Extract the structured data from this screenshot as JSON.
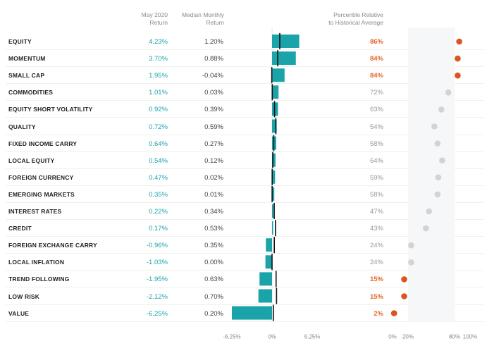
{
  "headers": {
    "return_l1": "May 2020",
    "return_l2": "Return",
    "median_l1": "Median Monthly",
    "median_l2": "Return",
    "pct_l1": "Percentile Relative",
    "pct_l2": "to Historical Average"
  },
  "colors": {
    "bar": "#1aa3a9",
    "median_tick": "#111111",
    "dot_high": "#d9571e",
    "dot_low": "#d3d3d3",
    "text_pct_high": "#e26a2c"
  },
  "chart_data": {
    "type": "bar",
    "title": "",
    "categories": [
      "EQUITY",
      "MOMENTUM",
      "SMALL CAP",
      "COMMODITIES",
      "EQUITY SHORT VOLATILITY",
      "QUALITY",
      "FIXED INCOME CARRY",
      "LOCAL EQUITY",
      "FOREIGN CURRENCY",
      "EMERGING MARKETS",
      "INTEREST RATES",
      "CREDIT",
      "FOREIGN EXCHANGE CARRY",
      "LOCAL INFLATION",
      "TREND FOLLOWING",
      "LOW RISK",
      "VALUE"
    ],
    "series": [
      {
        "name": "May 2020 Return",
        "values": [
          4.23,
          3.7,
          1.95,
          1.01,
          0.92,
          0.72,
          0.64,
          0.54,
          0.47,
          0.35,
          0.22,
          0.17,
          -0.96,
          -1.03,
          -1.95,
          -2.12,
          -6.25
        ]
      },
      {
        "name": "Median Monthly Return",
        "values": [
          1.2,
          0.88,
          -0.04,
          0.03,
          0.39,
          0.59,
          0.27,
          0.12,
          0.02,
          0.01,
          0.34,
          0.53,
          0.35,
          0.0,
          0.63,
          0.7,
          0.2
        ]
      },
      {
        "name": "Percentile Relative to Historical Average",
        "values": [
          86,
          84,
          84,
          72,
          63,
          54,
          58,
          64,
          59,
          58,
          47,
          43,
          24,
          24,
          15,
          15,
          2
        ]
      }
    ],
    "display": {
      "returns": [
        "4.23%",
        "3.70%",
        "1.95%",
        "1.01%",
        "0.92%",
        "0.72%",
        "0.64%",
        "0.54%",
        "0.47%",
        "0.35%",
        "0.22%",
        "0.17%",
        "-0.96%",
        "-1.03%",
        "-1.95%",
        "-2.12%",
        "-6.25%"
      ],
      "medians": [
        "1.20%",
        "0.88%",
        "-0.04%",
        "0.03%",
        "0.39%",
        "0.59%",
        "0.27%",
        "0.12%",
        "0.02%",
        "0.01%",
        "0.34%",
        "0.53%",
        "0.35%",
        "0.00%",
        "0.63%",
        "0.70%",
        "0.20%"
      ],
      "percentiles": [
        "86%",
        "84%",
        "84%",
        "72%",
        "63%",
        "54%",
        "58%",
        "64%",
        "59%",
        "58%",
        "47%",
        "43%",
        "24%",
        "24%",
        "15%",
        "15%",
        "2%"
      ]
    },
    "highlight_threshold_low": 20,
    "highlight_threshold_high": 80,
    "bar_axis": {
      "xlim": [
        -6.25,
        6.25
      ],
      "ticks": [
        "-6.25%",
        "0%",
        "6.25%"
      ],
      "tick_values": [
        -6.25,
        0,
        6.25
      ]
    },
    "dot_axis": {
      "xlim": [
        0,
        100
      ],
      "ticks": [
        "0%",
        "20%",
        "80%",
        "100%"
      ],
      "tick_values": [
        0,
        20,
        80,
        100
      ],
      "band": [
        20,
        80
      ]
    }
  }
}
